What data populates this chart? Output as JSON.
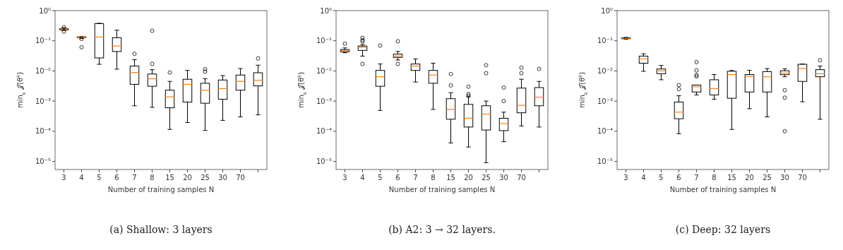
{
  "chart_data": [
    {
      "type": "box",
      "xlabel": "Number of training samples N",
      "ylabel": "min$_{k}$ 𝒥(θ$^{k}$)",
      "annotations": [
        "(a) Shallow: 3 layers"
      ],
      "log": "y",
      "ylim": [
        5.4e-06,
        1
      ],
      "yticks": [
        {
          "value": 1,
          "label": "10⁰"
        },
        {
          "value": 0.1,
          "label": "10⁻¹"
        },
        {
          "value": 0.01,
          "label": "10⁻²"
        },
        {
          "value": 0.001,
          "label": "10⁻³"
        },
        {
          "value": 0.0001,
          "label": "10⁻⁴"
        },
        {
          "value": 1e-05,
          "label": "10⁻⁵"
        }
      ],
      "categories": [
        "3",
        "4",
        "5",
        "6",
        "7",
        "8",
        "15",
        "20",
        "25",
        "30",
        "70",
        null
      ],
      "boxes": [
        {
          "low": 0.22,
          "q1": 0.23,
          "median": 0.245,
          "q3": 0.255,
          "high": 0.27,
          "outliers": [
            0.2,
            0.28
          ]
        },
        {
          "low": 0.12,
          "q1": 0.128,
          "median": 0.133,
          "q3": 0.135,
          "high": 0.137,
          "outliers": [
            0.115,
            0.061
          ]
        },
        {
          "low": 0.0166,
          "q1": 0.027,
          "median": 0.133,
          "q3": 0.37,
          "high": 0.38
        },
        {
          "low": 0.0114,
          "q1": 0.044,
          "median": 0.067,
          "q3": 0.126,
          "high": 0.224
        },
        {
          "low": 0.0007,
          "q1": 0.0036,
          "median": 0.0089,
          "q3": 0.0145,
          "high": 0.0235,
          "outliers": [
            0.037
          ]
        },
        {
          "low": 0.00062,
          "q1": 0.0031,
          "median": 0.0055,
          "q3": 0.0079,
          "high": 0.011,
          "outliers": [
            0.215,
            0.0172
          ]
        },
        {
          "low": 0.000115,
          "q1": 0.0006,
          "median": 0.00138,
          "q3": 0.0023,
          "high": 0.0045,
          "outliers": [
            0.0089
          ]
        },
        {
          "low": 0.000195,
          "q1": 0.00093,
          "median": 0.0036,
          "q3": 0.0053,
          "high": 0.0104
        },
        {
          "low": 0.000107,
          "q1": 0.00085,
          "median": 0.0023,
          "q3": 0.0039,
          "high": 0.0055,
          "outliers": [
            0.0115,
            0.0095
          ]
        },
        {
          "low": 0.00023,
          "q1": 0.00115,
          "median": 0.0026,
          "q3": 0.005,
          "high": 0.007
        },
        {
          "low": 0.0003,
          "q1": 0.0023,
          "median": 0.0045,
          "q3": 0.0073,
          "high": 0.012
        },
        {
          "low": 0.00035,
          "q1": 0.0032,
          "median": 0.0049,
          "q3": 0.0087,
          "high": 0.0155,
          "outliers": [
            0.026
          ]
        }
      ]
    },
    {
      "type": "box",
      "xlabel": "Number of training samples N",
      "ylabel": "min$_{k}$ 𝒥(θ$^{k}$)",
      "annotations": [
        "(b) A2: 3 → 32 layers."
      ],
      "log": "y",
      "ylim": [
        5.4e-06,
        1
      ],
      "yticks": [
        {
          "value": 1,
          "label": "10⁰"
        },
        {
          "value": 0.1,
          "label": "10⁻¹"
        },
        {
          "value": 0.01,
          "label": "10⁻²"
        },
        {
          "value": 0.001,
          "label": "10⁻³"
        },
        {
          "value": 0.0001,
          "label": "10⁻⁴"
        },
        {
          "value": 1e-05,
          "label": "10⁻⁵"
        }
      ],
      "categories": [
        "3",
        "4",
        "5",
        "6",
        "7",
        "8",
        "15",
        "20",
        "25",
        "30",
        "70",
        null
      ],
      "boxes": [
        {
          "low": 0.04,
          "q1": 0.043,
          "median": 0.047,
          "q3": 0.051,
          "high": 0.058,
          "outliers": [
            0.08
          ]
        },
        {
          "low": 0.031,
          "q1": 0.048,
          "median": 0.061,
          "q3": 0.067,
          "high": 0.075,
          "outliers": [
            0.125,
            0.105,
            0.095,
            0.017
          ]
        },
        {
          "low": 0.00049,
          "q1": 0.0031,
          "median": 0.0064,
          "q3": 0.0104,
          "high": 0.017,
          "outliers": [
            0.069
          ]
        },
        {
          "low": 0.023,
          "q1": 0.028,
          "median": 0.031,
          "q3": 0.036,
          "high": 0.044,
          "outliers": [
            0.096,
            0.017
          ]
        },
        {
          "low": 0.0043,
          "q1": 0.0104,
          "median": 0.0145,
          "q3": 0.017,
          "high": 0.025
        },
        {
          "low": 0.00053,
          "q1": 0.0039,
          "median": 0.0073,
          "q3": 0.0104,
          "high": 0.018
        },
        {
          "low": 4.1e-05,
          "q1": 0.00025,
          "median": 0.00053,
          "q3": 0.0012,
          "high": 0.0019,
          "outliers": [
            0.0079,
            0.0033
          ]
        },
        {
          "low": 3e-05,
          "q1": 0.000138,
          "median": 0.00027,
          "q3": 0.00078,
          "high": 0.0014,
          "outliers": [
            0.003,
            0.0017,
            0.0015
          ]
        },
        {
          "low": 9.1e-06,
          "q1": 0.00011,
          "median": 0.00037,
          "q3": 0.0007,
          "high": 0.001,
          "outliers": [
            0.0155,
            0.0084
          ]
        },
        {
          "low": 4.5e-05,
          "q1": 0.000105,
          "median": 0.00018,
          "q3": 0.00027,
          "high": 0.00043,
          "outliers": [
            0.0028,
            0.001
          ]
        },
        {
          "low": 0.00015,
          "q1": 0.00041,
          "median": 0.00072,
          "q3": 0.0027,
          "high": 0.0053,
          "outliers": [
            0.0128,
            0.0084
          ]
        },
        {
          "low": 0.000138,
          "q1": 0.0007,
          "median": 0.00135,
          "q3": 0.0028,
          "high": 0.0045,
          "outliers": [
            0.0117
          ]
        }
      ]
    },
    {
      "type": "box",
      "xlabel": "Number of training samples N",
      "ylabel": "min$_{k}$ 𝒥(θ$^{k}$)",
      "annotations": [
        "(c) Deep: 32 layers"
      ],
      "log": "y",
      "ylim": [
        5.4e-06,
        1
      ],
      "yticks": [
        {
          "value": 1,
          "label": "10⁰"
        },
        {
          "value": 0.1,
          "label": "10⁻¹"
        },
        {
          "value": 0.01,
          "label": "10⁻²"
        },
        {
          "value": 0.001,
          "label": "10⁻³"
        },
        {
          "value": 0.0001,
          "label": "10⁻⁴"
        },
        {
          "value": 1e-05,
          "label": "10⁻⁵"
        }
      ],
      "categories": [
        "3",
        "4",
        "5",
        "6",
        "7",
        "8",
        "15",
        "20",
        "25",
        "30",
        "70",
        null
      ],
      "boxes": [
        {
          "low": 0.113,
          "q1": 0.117,
          "median": 0.121,
          "q3": 0.125,
          "high": 0.13
        },
        {
          "low": 0.0097,
          "q1": 0.018,
          "median": 0.025,
          "q3": 0.031,
          "high": 0.037
        },
        {
          "low": 0.0051,
          "q1": 0.0081,
          "median": 0.0101,
          "q3": 0.0116,
          "high": 0.0152
        },
        {
          "low": 8.3e-05,
          "q1": 0.00026,
          "median": 0.00043,
          "q3": 0.00093,
          "high": 0.0015,
          "outliers": [
            0.0034,
            0.0025
          ]
        },
        {
          "low": 0.0016,
          "q1": 0.002,
          "median": 0.003,
          "q3": 0.0034,
          "high": 0.0034,
          "outliers": [
            0.0196,
            0.0104,
            0.0073,
            0.0066
          ]
        },
        {
          "low": 0.00115,
          "q1": 0.0016,
          "median": 0.0026,
          "q3": 0.0051,
          "high": 0.0076
        },
        {
          "low": 0.000115,
          "q1": 0.00124,
          "median": 0.0076,
          "q3": 0.0097,
          "high": 0.0104
        },
        {
          "low": 0.00056,
          "q1": 0.002,
          "median": 0.0066,
          "q3": 0.0076,
          "high": 0.0104
        },
        {
          "low": 0.0003,
          "q1": 0.002,
          "median": 0.0064,
          "q3": 0.0095,
          "high": 0.012
        },
        {
          "low": 0.0064,
          "q1": 0.0075,
          "median": 0.0084,
          "q3": 0.0101,
          "high": 0.0117,
          "outliers": [
            0.0023,
            0.0013,
            0.0001
          ]
        },
        {
          "low": 0.00095,
          "q1": 0.0045,
          "median": 0.012,
          "q3": 0.0166,
          "high": 0.017
        },
        {
          "low": 0.00025,
          "q1": 0.0064,
          "median": 0.0081,
          "q3": 0.011,
          "high": 0.0145,
          "outliers": [
            0.0226
          ]
        }
      ]
    }
  ]
}
